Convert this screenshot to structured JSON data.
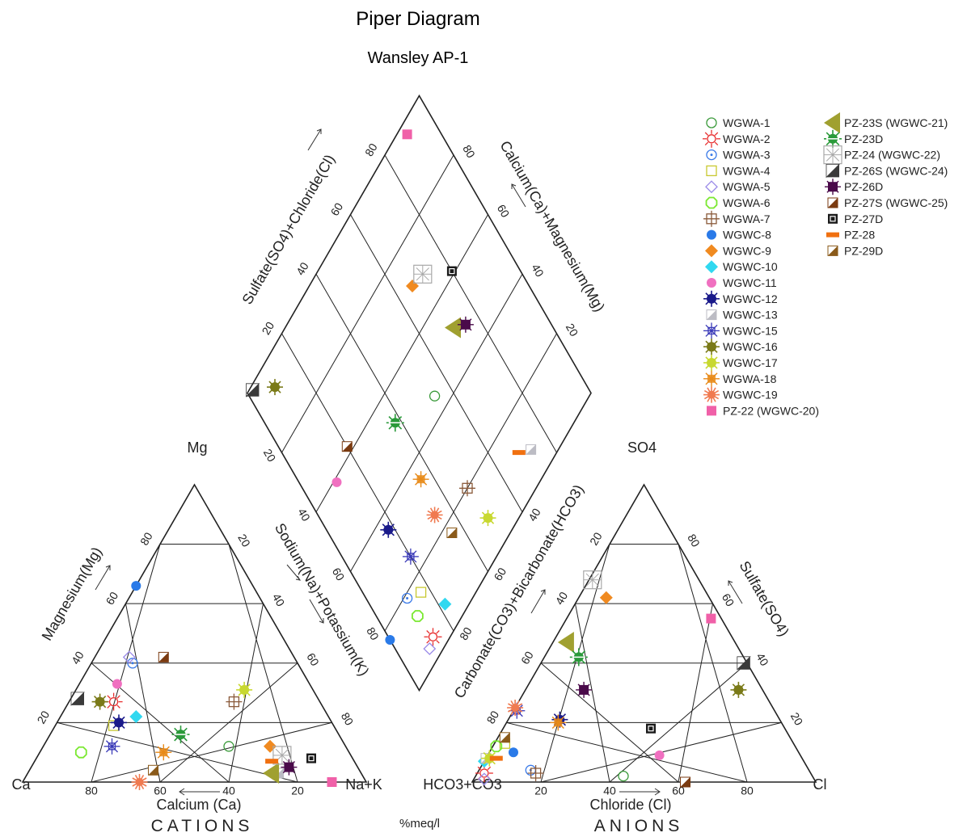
{
  "chart_data": {
    "type": "scatter",
    "title": "Piper Diagram",
    "subtitle": "Wansley AP-1",
    "units_label": "%meq/l",
    "cations": {
      "section_label": "CATIONS",
      "corners": {
        "left": "Ca",
        "top": "Mg",
        "right": "Na+K"
      },
      "labels": {
        "bottom": "Calcium (Ca)",
        "left": "Magnesium(Mg)",
        "right": "Sodium(Na)+Potassium(K)"
      },
      "bottom_ticks": [
        "80",
        "60",
        "40",
        "20"
      ],
      "left_ticks": [
        "20",
        "40",
        "60",
        "80"
      ],
      "right_ticks": [
        "20",
        "40",
        "60",
        "80"
      ]
    },
    "anions": {
      "section_label": "ANIONS",
      "corners": {
        "left": "HCO3+CO3",
        "top": "SO4",
        "right": "Cl"
      },
      "labels": {
        "bottom": "Chloride (Cl)",
        "left": "Carbonate(CO3)+Bicarbonate(HCO3)",
        "right": "Sulfate(SO4)"
      },
      "bottom_ticks": [
        "20",
        "40",
        "60",
        "80"
      ],
      "left_ticks": [
        "80",
        "60",
        "40",
        "20"
      ],
      "right_ticks": [
        "80",
        "60",
        "40",
        "20"
      ]
    },
    "diamond": {
      "labels": {
        "upper_left": "Sulfate(SO4)+Chloride(Cl)",
        "upper_right": "Calcium(Ca)+Magnesium(Mg)"
      },
      "upper_left_ticks": [
        "20",
        "40",
        "60",
        "80"
      ],
      "upper_right_ticks": [
        "80",
        "60",
        "40",
        "20"
      ],
      "lower_left_ticks": [
        "20",
        "40",
        "60",
        "80"
      ],
      "lower_right_ticks": [
        "40",
        "60",
        "80"
      ]
    },
    "samples": [
      {
        "name": "WGWA-1",
        "color": "#3a9a3a",
        "marker": "circle-open",
        "ca": 34,
        "mg": 12,
        "cl": 43,
        "so4": 2
      },
      {
        "name": "WGWA-2",
        "color": "#e83030",
        "marker": "sun-open",
        "ca": 60,
        "mg": 27,
        "cl": 2,
        "so4": 3
      },
      {
        "name": "WGWA-3",
        "color": "#3a7ae8",
        "marker": "circle-dot",
        "ca": 48,
        "mg": 40,
        "cl": 15,
        "so4": 4
      },
      {
        "name": "WGWA-4",
        "color": "#c8c830",
        "marker": "square-open",
        "ca": 64,
        "mg": 19,
        "cl": 3,
        "so4": 13
      },
      {
        "name": "WGWA-5",
        "color": "#9a8ae8",
        "marker": "diamond-open",
        "ca": 48,
        "mg": 42,
        "cl": 3,
        "so4": 1
      },
      {
        "name": "WGWA-6",
        "color": "#7ae830",
        "marker": "octagon-open",
        "ca": 78,
        "mg": 10,
        "cl": 1,
        "so4": 12
      },
      {
        "name": "WGWA-7",
        "color": "#8a5a3a",
        "marker": "square-cross",
        "ca": 25,
        "mg": 27,
        "cl": 17,
        "so4": 3
      },
      {
        "name": "WGWC-8",
        "color": "#2a7ae8",
        "marker": "circle-fill",
        "ca": 34,
        "mg": 66,
        "cl": 7,
        "so4": 10
      },
      {
        "name": "WGWC-9",
        "color": "#f08a20",
        "marker": "diamond-fill",
        "ca": 22,
        "mg": 12,
        "cl": 8,
        "so4": 62
      },
      {
        "name": "WGWC-10",
        "color": "#30d8f0",
        "marker": "diamond-fill",
        "ca": 56,
        "mg": 22,
        "cl": 0,
        "so4": 7
      },
      {
        "name": "WGWC-11",
        "color": "#f070c0",
        "marker": "circle-fill",
        "ca": 56,
        "mg": 33,
        "cl": 50,
        "so4": 9
      },
      {
        "name": "WGWC-12",
        "color": "#1a1a8a",
        "marker": "circle-spiky",
        "ca": 62,
        "mg": 20,
        "cl": 15,
        "so4": 21
      },
      {
        "name": "WGWC-13",
        "color": "#bcbcc4",
        "marker": "square-half",
        "ca": 24,
        "mg": 3,
        "cl": 0,
        "so4": 8
      },
      {
        "name": "WGWC-15",
        "color": "#3a3ab8",
        "marker": "asterisk",
        "ca": 68,
        "mg": 12,
        "cl": 1,
        "so4": 24
      },
      {
        "name": "WGWC-16",
        "color": "#7a7a18",
        "marker": "circle-spiky",
        "ca": 64,
        "mg": 27,
        "cl": 62,
        "so4": 31
      },
      {
        "name": "WGWC-17",
        "color": "#c8d830",
        "marker": "circle-spiky",
        "ca": 20,
        "mg": 31,
        "cl": 1,
        "so4": 8
      },
      {
        "name": "WGWA-18",
        "color": "#e88a18",
        "marker": "spiky-square",
        "ca": 54,
        "mg": 10,
        "cl": 15,
        "so4": 20
      },
      {
        "name": "WGWC-19",
        "color": "#f07a50",
        "marker": "spiky-sun",
        "ca": 66,
        "mg": 0,
        "cl": 0,
        "so4": 25
      },
      {
        "name": "PZ-22 (WGWC-20)",
        "color": "#f060a8",
        "marker": "square-fill",
        "ca": 10,
        "mg": 0,
        "cl": 42,
        "so4": 55
      },
      {
        "name": "PZ-23S (WGWC-21)",
        "color": "#a0a030",
        "marker": "triangle-left",
        "ca": 26,
        "mg": 3,
        "cl": 4,
        "so4": 47
      },
      {
        "name": "PZ-23D",
        "color": "#2a9a3a",
        "marker": "spiky-circle",
        "ca": 46,
        "mg": 16,
        "cl": 10,
        "so4": 42
      },
      {
        "name": "PZ-24 (WGWC-22)",
        "color": "#a8a8a8",
        "marker": "square-star",
        "ca": 20,
        "mg": 9,
        "cl": 1,
        "so4": 68
      },
      {
        "name": "PZ-26S (WGWC-24)",
        "color": "#3a3a3a",
        "marker": "triangle-half",
        "ca": 70,
        "mg": 28,
        "cl": 59,
        "so4": 40
      },
      {
        "name": "PZ-26D",
        "color": "#4a0a4a",
        "marker": "spiky-square-fill",
        "ca": 20,
        "mg": 5,
        "cl": 17,
        "so4": 31
      },
      {
        "name": "PZ-27S (WGWC-25)",
        "color": "#7a3a10",
        "marker": "square-half",
        "ca": 38,
        "mg": 42,
        "cl": 62,
        "so4": 0
      },
      {
        "name": "PZ-27D",
        "color": "#1a1a1a",
        "marker": "square-target",
        "ca": 12,
        "mg": 8,
        "cl": 43,
        "so4": 18
      },
      {
        "name": "PZ-28",
        "color": "#f07010",
        "marker": "bar",
        "ca": 24,
        "mg": 7,
        "cl": 3,
        "so4": 8
      },
      {
        "name": "PZ-29D",
        "color": "#8a5a1a",
        "marker": "square-half",
        "ca": 60,
        "mg": 4,
        "cl": 2,
        "so4": 15
      }
    ]
  }
}
